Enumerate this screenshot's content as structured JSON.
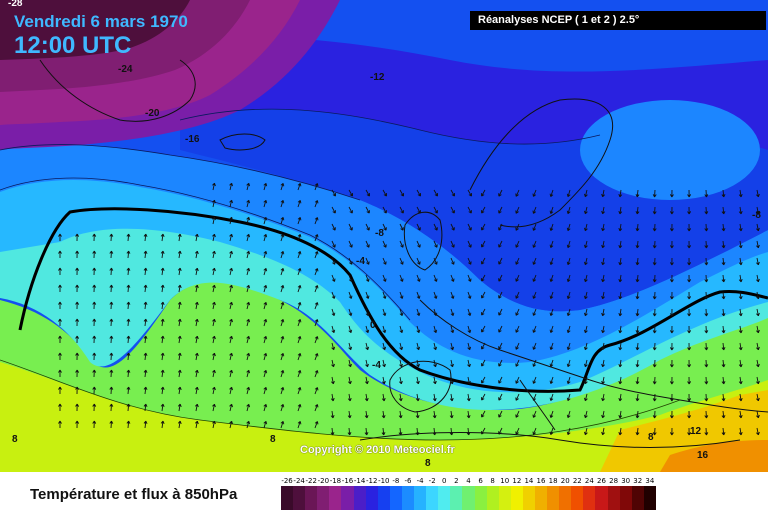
{
  "header": {
    "date": "Vendredi 6 mars 1970",
    "time": "12:00 UTC",
    "source": "Réanalyses NCEP ( 1 et 2 ) 2.5°"
  },
  "footer": {
    "title": "Température et flux à 850hPa",
    "copyright": "Copyright © 2010 Meteociel.fr"
  },
  "legend": {
    "ticks": [
      "-26",
      "-24",
      "-22",
      "-20",
      "-18",
      "-16",
      "-14",
      "-12",
      "-10",
      "-8",
      "-6",
      "-4",
      "-2",
      "0",
      "2",
      "4",
      "6",
      "8",
      "10",
      "12",
      "14",
      "16",
      "18",
      "20",
      "22",
      "24",
      "26",
      "28",
      "30",
      "32",
      "34"
    ],
    "colors": [
      "#3a0a2a",
      "#4e0f3c",
      "#6a1656",
      "#801e72",
      "#9a248c",
      "#7a1ea8",
      "#4b1ec8",
      "#2a22e0",
      "#1640f0",
      "#1466ff",
      "#1c8cff",
      "#26b2ff",
      "#3cd6ff",
      "#50ecef",
      "#5cf0b0",
      "#70f070",
      "#8af040",
      "#b0f020",
      "#d4f010",
      "#f0f000",
      "#f0d000",
      "#f0b000",
      "#f09000",
      "#f07000",
      "#f05000",
      "#e03010",
      "#c81818",
      "#a01010",
      "#800808",
      "#500404",
      "#200000"
    ]
  },
  "contour_labels": [
    {
      "text": "-28"
    },
    {
      "text": "-24"
    },
    {
      "text": "-20"
    },
    {
      "text": "-16"
    },
    {
      "text": "-12"
    },
    {
      "text": "-8"
    },
    {
      "text": "-8"
    },
    {
      "text": "-4"
    },
    {
      "text": "0"
    },
    {
      "text": "-4"
    },
    {
      "text": "8"
    },
    {
      "text": "8"
    },
    {
      "text": "8"
    },
    {
      "text": "8"
    },
    {
      "text": "12"
    },
    {
      "text": "16"
    }
  ],
  "colors": {
    "date_text": "#3fb8ff",
    "zero_line": "#000000"
  }
}
